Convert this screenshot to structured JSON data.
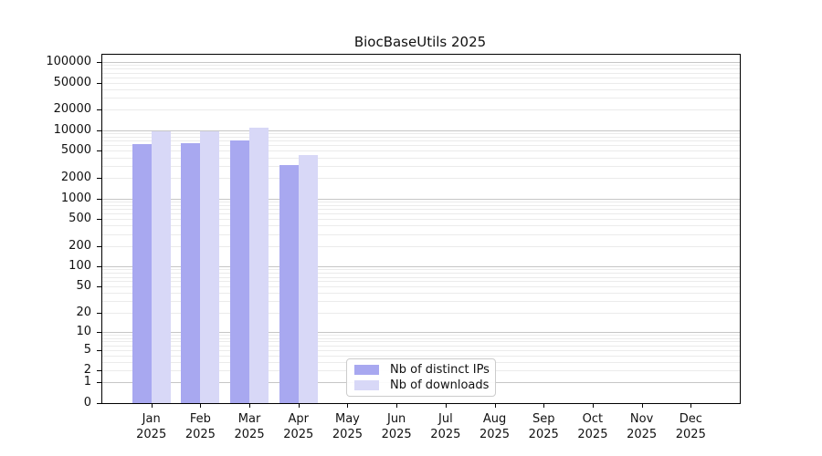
{
  "title": "BiocBaseUtils 2025",
  "chart_data": {
    "type": "bar",
    "title": "BiocBaseUtils 2025",
    "categories": [
      "Jan",
      "Feb",
      "Mar",
      "Apr",
      "May",
      "Jun",
      "Jul",
      "Aug",
      "Sep",
      "Oct",
      "Nov",
      "Dec"
    ],
    "year": "2025",
    "series": [
      {
        "name": "Nb of distinct IPs",
        "color": "#a8a8f0",
        "values": [
          6200,
          6500,
          7000,
          3100,
          null,
          null,
          null,
          null,
          null,
          null,
          null,
          null
        ]
      },
      {
        "name": "Nb of downloads",
        "color": "#d8d8f7",
        "values": [
          9500,
          9600,
          10900,
          4300,
          null,
          null,
          null,
          null,
          null,
          null,
          null,
          null
        ]
      }
    ],
    "yticks": [
      100000,
      50000,
      20000,
      10000,
      5000,
      2000,
      1000,
      500,
      200,
      100,
      50,
      20,
      10,
      5,
      2,
      1,
      0
    ],
    "yscale": "log10(1+v)",
    "ylim": [
      0,
      120000
    ],
    "xlabel": "",
    "ylabel": "",
    "grid": "horizontal",
    "legend_position": "inside-bottom-center"
  }
}
